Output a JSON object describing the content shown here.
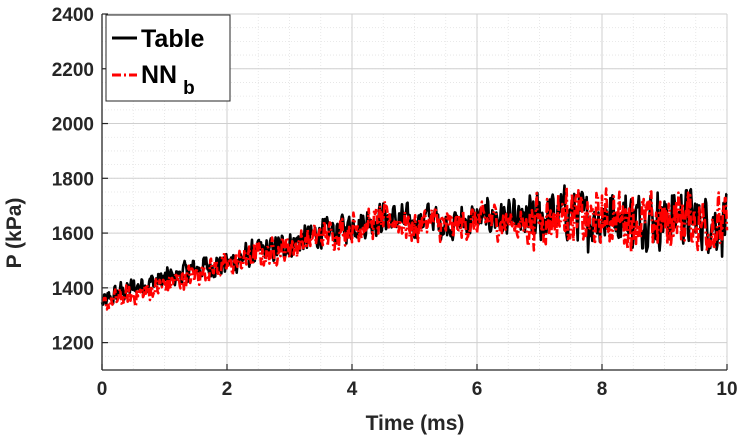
{
  "chart_data": {
    "type": "line",
    "title": "",
    "xlabel": "Time (ms)",
    "ylabel": "P (kPa)",
    "xlim": [
      0,
      10
    ],
    "ylim": [
      1100,
      2400
    ],
    "xticks": [
      0,
      2,
      4,
      6,
      8,
      10
    ],
    "yticks": [
      1200,
      1400,
      1600,
      1800,
      2000,
      2200,
      2400
    ],
    "grid": true,
    "minor_grid": true,
    "legend_position": "top-left",
    "series": [
      {
        "name": "Table",
        "color": "#000000",
        "style": "solid",
        "x": [
          0,
          0.25,
          0.5,
          0.75,
          1,
          1.25,
          1.5,
          1.75,
          2,
          2.25,
          2.5,
          2.75,
          3,
          3.25,
          3.5,
          3.75,
          4,
          4.25,
          4.5,
          4.75,
          5,
          5.25,
          5.5,
          5.75,
          6,
          6.25,
          6.5,
          6.75,
          7,
          7.25,
          7.5,
          7.75,
          8,
          8.25,
          8.5,
          8.75,
          9,
          9.25,
          9.5,
          9.75,
          10
        ],
        "y": [
          1340,
          1380,
          1400,
          1420,
          1430,
          1450,
          1470,
          1480,
          1490,
          1510,
          1530,
          1540,
          1560,
          1580,
          1600,
          1610,
          1630,
          1640,
          1660,
          1650,
          1640,
          1660,
          1630,
          1640,
          1650,
          1660,
          1650,
          1640,
          1650,
          1660,
          1680,
          1650,
          1660,
          1670,
          1650,
          1660,
          1650,
          1670,
          1650,
          1640,
          1640
        ]
      },
      {
        "name": "NN b",
        "color": "#ff0000",
        "style": "dash-dot",
        "x": [
          0,
          0.25,
          0.5,
          0.75,
          1,
          1.25,
          1.5,
          1.75,
          2,
          2.25,
          2.5,
          2.75,
          3,
          3.25,
          3.5,
          3.75,
          4,
          4.25,
          4.5,
          4.75,
          5,
          5.25,
          5.5,
          5.75,
          6,
          6.25,
          6.5,
          6.75,
          7,
          7.25,
          7.5,
          7.75,
          8,
          8.25,
          8.5,
          8.75,
          9,
          9.25,
          9.5,
          9.75,
          10
        ],
        "y": [
          1330,
          1360,
          1370,
          1390,
          1410,
          1430,
          1450,
          1470,
          1480,
          1500,
          1520,
          1530,
          1550,
          1570,
          1590,
          1600,
          1620,
          1630,
          1650,
          1640,
          1620,
          1650,
          1620,
          1630,
          1640,
          1650,
          1640,
          1630,
          1650,
          1660,
          1670,
          1640,
          1650,
          1660,
          1640,
          1650,
          1640,
          1660,
          1640,
          1630,
          1630
        ]
      }
    ],
    "legend": {
      "entries": [
        {
          "main": "Table",
          "sub": ""
        },
        {
          "main": "NN",
          "sub": "b"
        }
      ]
    }
  }
}
